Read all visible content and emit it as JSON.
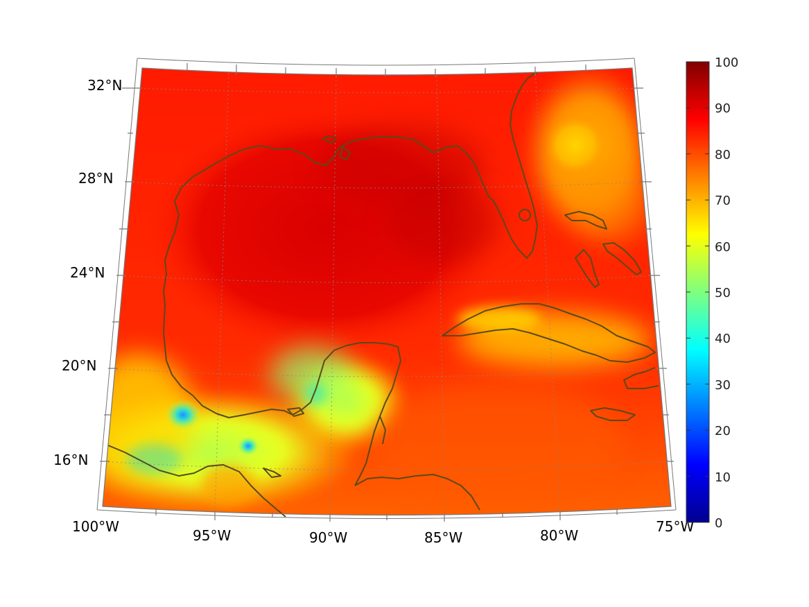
{
  "map": {
    "lat_labels": [
      "32°N",
      "28°N",
      "24°N",
      "20°N",
      "16°N"
    ],
    "lon_labels": [
      "100°W",
      "95°W",
      "90°W",
      "85°W",
      "80°W",
      "75°W"
    ],
    "colorbar": {
      "ticks": [
        "100",
        "90",
        "80",
        "70",
        "60",
        "50",
        "40",
        "30",
        "20",
        "10",
        "0"
      ],
      "colormap": "jet",
      "range": [
        0,
        100
      ]
    },
    "colors": {
      "coastline": "#5a4a1a",
      "frame": "#777777",
      "grid": "#888888"
    }
  }
}
